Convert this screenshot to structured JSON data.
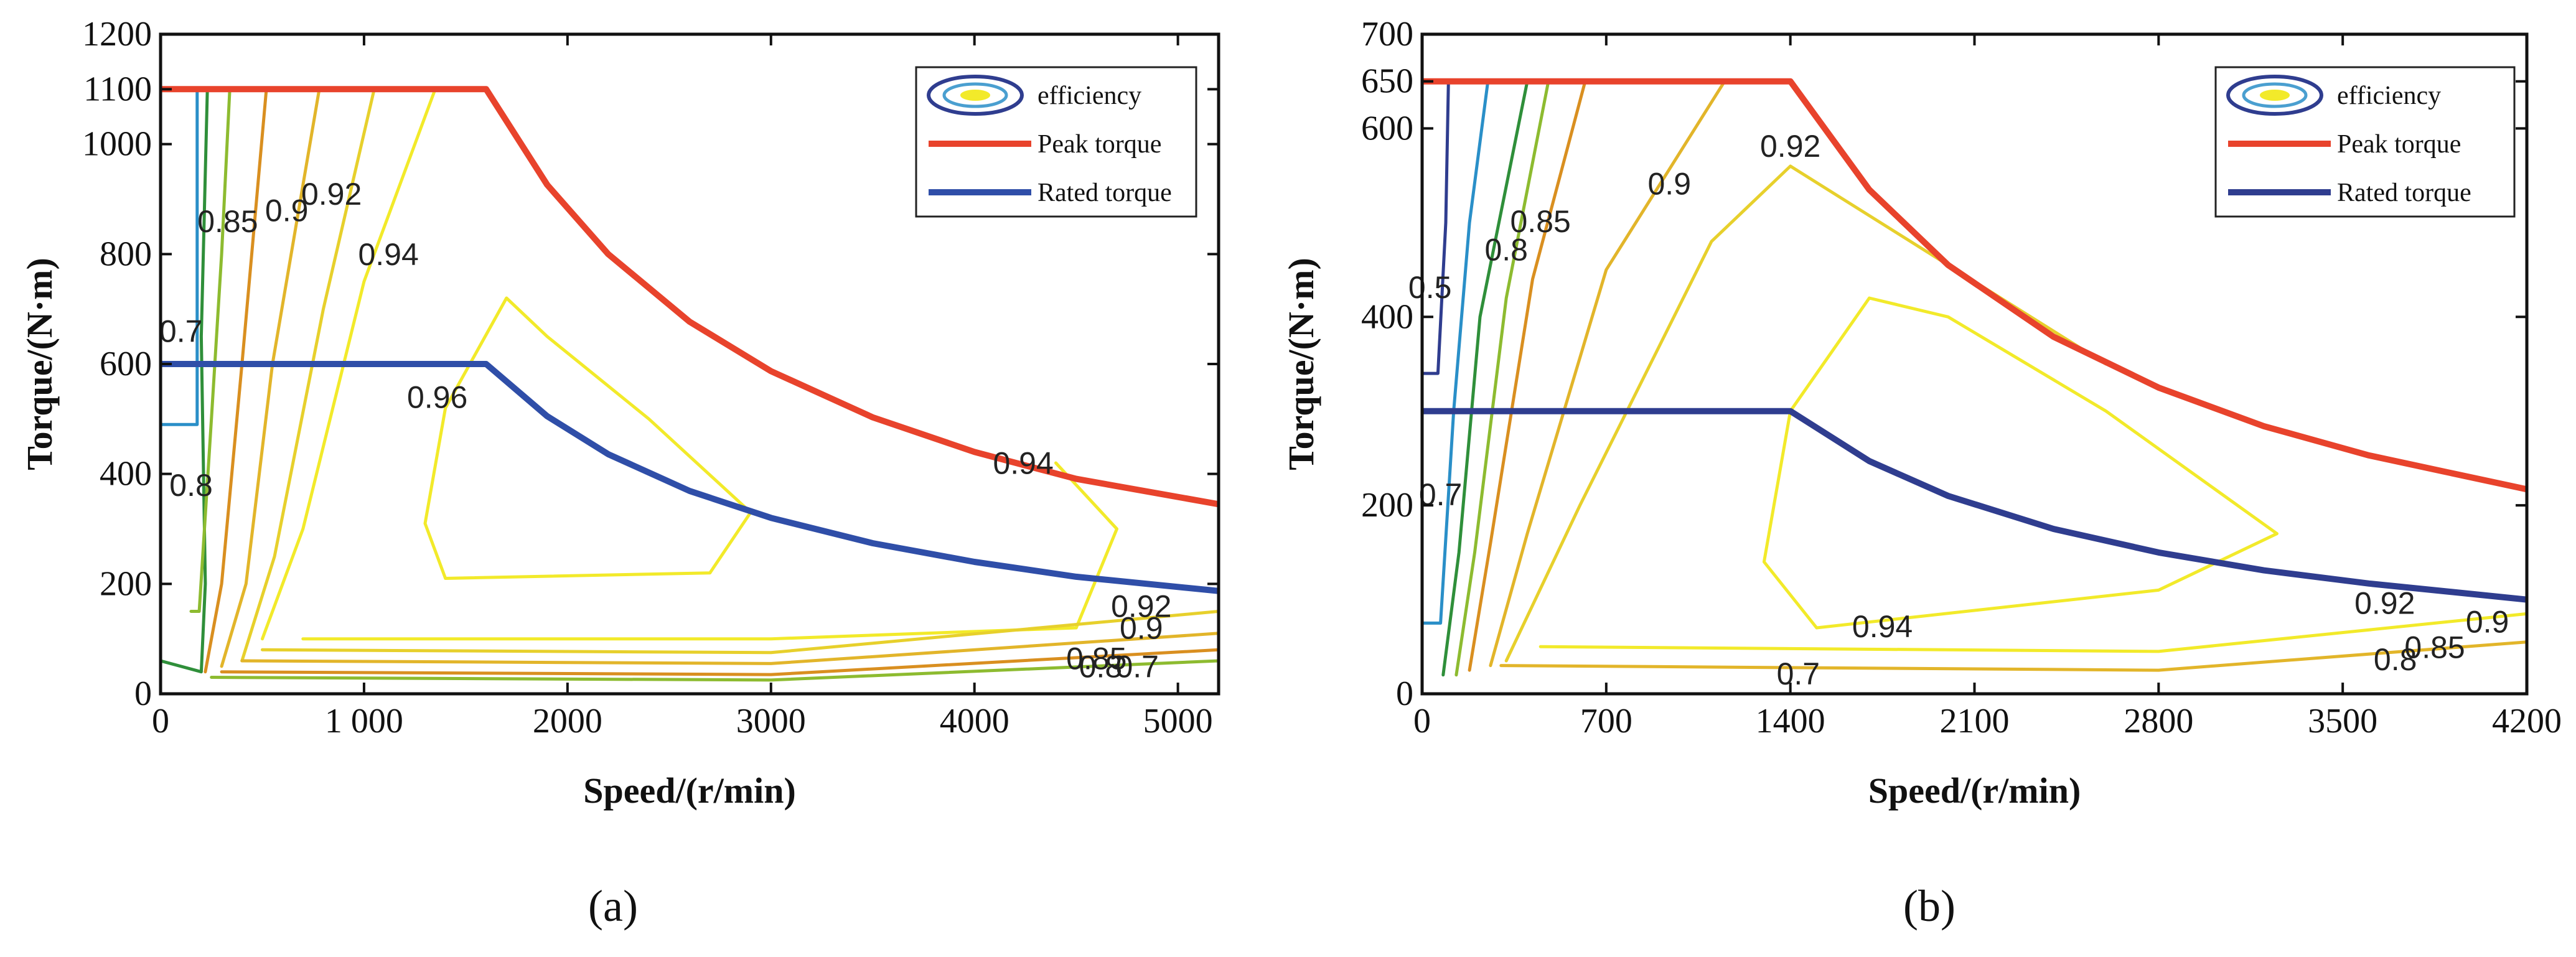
{
  "chart_data": [
    {
      "type": "contour",
      "panel_label": "(a)",
      "xlabel": "Speed/(r/min)",
      "ylabel": "Torque/(N·m)",
      "xlim": [
        0,
        5200
      ],
      "ylim": [
        0,
        1200
      ],
      "x_ticks": [
        0,
        1000,
        2000,
        3000,
        4000,
        5000
      ],
      "x_tick_labels": [
        "0",
        "1 000",
        "2000",
        "3000",
        "4000",
        "5000"
      ],
      "y_ticks": [
        0,
        200,
        400,
        600,
        800,
        1000,
        1100,
        1200
      ],
      "y_tick_labels": [
        "0",
        "200",
        "400",
        "600",
        "800",
        "1000",
        "1100",
        "1200"
      ],
      "legend": {
        "placement": "top-right",
        "entries": [
          {
            "label": "efficiency",
            "kind": "contour",
            "color": "#f2ea2a"
          },
          {
            "label": "Peak torque",
            "kind": "line",
            "color": "#e8432c"
          },
          {
            "label": "Rated torque",
            "kind": "line",
            "color": "#2f4ea8"
          }
        ]
      },
      "series": [
        {
          "name": "Peak torque",
          "color": "#e8432c",
          "points": [
            [
              0,
              1100
            ],
            [
              1600,
              1100
            ],
            [
              1900,
              926
            ],
            [
              2200,
              800
            ],
            [
              2600,
              677
            ],
            [
              3000,
              587
            ],
            [
              3500,
              503
            ],
            [
              4000,
              440
            ],
            [
              4500,
              391
            ],
            [
              5200,
              345
            ]
          ]
        },
        {
          "name": "Rated torque",
          "color": "#2f4ea8",
          "points": [
            [
              0,
              600
            ],
            [
              1600,
              600
            ],
            [
              1900,
              505
            ],
            [
              2200,
              436
            ],
            [
              2600,
              369
            ],
            [
              3000,
              320
            ],
            [
              3500,
              274
            ],
            [
              4000,
              240
            ],
            [
              4500,
              213
            ],
            [
              5200,
              187
            ]
          ]
        }
      ],
      "contours": [
        {
          "level": "0.5",
          "color": "#2a8fc8",
          "points": [
            [
              0,
              490
            ],
            [
              180,
              490
            ],
            [
              180,
              1100
            ]
          ]
        },
        {
          "level": "0.7",
          "color": "#2f8f3a",
          "points": [
            [
              0,
              60
            ],
            [
              200,
              40
            ],
            [
              220,
              200
            ],
            [
              200,
              650
            ],
            [
              230,
              1100
            ]
          ]
        },
        {
          "level": "0.8",
          "color": "#8dbb30",
          "points": [
            [
              150,
              150
            ],
            [
              190,
              150
            ],
            [
              250,
              500
            ],
            [
              300,
              800
            ],
            [
              340,
              1100
            ]
          ]
        },
        {
          "level": "0.85",
          "color": "#d98f20",
          "points": [
            [
              220,
              40
            ],
            [
              300,
              200
            ],
            [
              400,
              600
            ],
            [
              520,
              1100
            ]
          ]
        },
        {
          "level": "0.9",
          "color": "#e2b52a",
          "points": [
            [
              300,
              50
            ],
            [
              420,
              200
            ],
            [
              550,
              600
            ],
            [
              780,
              1100
            ]
          ]
        },
        {
          "level": "0.92",
          "color": "#e7d02c",
          "points": [
            [
              400,
              60
            ],
            [
              560,
              250
            ],
            [
              800,
              700
            ],
            [
              1050,
              1100
            ]
          ]
        },
        {
          "level": "0.94",
          "color": "#f2ea2a",
          "points": [
            [
              500,
              100
            ],
            [
              700,
              300
            ],
            [
              1000,
              750
            ],
            [
              1350,
              1100
            ]
          ]
        },
        {
          "level": "0.96",
          "color": "#f2ea2a",
          "points": [
            [
              1700,
              720
            ],
            [
              1400,
              520
            ],
            [
              1300,
              310
            ],
            [
              1400,
              210
            ],
            [
              2700,
              220
            ],
            [
              2900,
              330
            ],
            [
              2400,
              500
            ],
            [
              1900,
              650
            ],
            [
              1700,
              720
            ]
          ]
        },
        {
          "level": "0.94 loop",
          "color": "#f2ea2a",
          "points": [
            [
              700,
              100
            ],
            [
              3000,
              100
            ],
            [
              4500,
              120
            ],
            [
              4700,
              300
            ],
            [
              4400,
              420
            ]
          ]
        },
        {
          "level": "0.92 low",
          "color": "#e7d02c",
          "points": [
            [
              500,
              80
            ],
            [
              3000,
              75
            ],
            [
              5200,
              150
            ]
          ]
        },
        {
          "level": "0.9 low",
          "color": "#e2b52a",
          "points": [
            [
              400,
              60
            ],
            [
              3000,
              55
            ],
            [
              5200,
              110
            ]
          ]
        },
        {
          "level": "0.85 low",
          "color": "#d98f20",
          "points": [
            [
              300,
              40
            ],
            [
              3000,
              35
            ],
            [
              5200,
              80
            ]
          ]
        },
        {
          "level": "0.8 low",
          "color": "#8dbb30",
          "points": [
            [
              250,
              30
            ],
            [
              3000,
              25
            ],
            [
              5200,
              60
            ]
          ]
        }
      ],
      "annotations": [
        {
          "text": "0.7",
          "x": 100,
          "y": 640
        },
        {
          "text": "0.8",
          "x": 150,
          "y": 360
        },
        {
          "text": "0.85",
          "x": 330,
          "y": 840
        },
        {
          "text": "0.9",
          "x": 620,
          "y": 860
        },
        {
          "text": "0.92",
          "x": 840,
          "y": 890
        },
        {
          "text": "0.94",
          "x": 1120,
          "y": 780
        },
        {
          "text": "0.96",
          "x": 1360,
          "y": 520
        },
        {
          "text": "0.94",
          "x": 4240,
          "y": 400
        },
        {
          "text": "0.92",
          "x": 4820,
          "y": 140
        },
        {
          "text": "0.9",
          "x": 4820,
          "y": 100
        },
        {
          "text": "0.85",
          "x": 4600,
          "y": 45
        },
        {
          "text": "0.8",
          "x": 4620,
          "y": 30
        },
        {
          "text": "0.7",
          "x": 4800,
          "y": 30
        }
      ]
    },
    {
      "type": "contour",
      "panel_label": "(b)",
      "xlabel": "Speed/(r/min)",
      "ylabel": "Torque/(N·m)",
      "xlim": [
        0,
        4200
      ],
      "ylim": [
        0,
        700
      ],
      "x_ticks": [
        0,
        700,
        1400,
        2100,
        2800,
        3500,
        4200
      ],
      "x_tick_labels": [
        "0",
        "700",
        "1400",
        "2100",
        "2800",
        "3500",
        "4200"
      ],
      "y_ticks": [
        0,
        200,
        400,
        600,
        650,
        700
      ],
      "y_tick_labels": [
        "0",
        "200",
        "400",
        "600",
        "650",
        "700"
      ],
      "legend": {
        "placement": "top-right",
        "entries": [
          {
            "label": "efficiency",
            "kind": "contour",
            "color": "#f2ea2a"
          },
          {
            "label": "Peak torque",
            "kind": "line",
            "color": "#e8432c"
          },
          {
            "label": "Rated torque",
            "kind": "line",
            "color": "#2f3d8f"
          }
        ]
      },
      "series": [
        {
          "name": "Peak torque",
          "color": "#e8432c",
          "points": [
            [
              0,
              650
            ],
            [
              1400,
              650
            ],
            [
              1700,
              535
            ],
            [
              2000,
              455
            ],
            [
              2400,
              379
            ],
            [
              2800,
              325
            ],
            [
              3200,
              284
            ],
            [
              3600,
              253
            ],
            [
              4200,
              217
            ]
          ]
        },
        {
          "name": "Rated torque",
          "color": "#2f3d8f",
          "points": [
            [
              0,
              300
            ],
            [
              1400,
              300
            ],
            [
              1700,
              247
            ],
            [
              2000,
              210
            ],
            [
              2400,
              175
            ],
            [
              2800,
              150
            ],
            [
              3200,
              131
            ],
            [
              3600,
              117
            ],
            [
              4200,
              100
            ]
          ]
        }
      ],
      "contours": [
        {
          "level": "0.5",
          "color": "#2f3d8f",
          "points": [
            [
              0,
              340
            ],
            [
              60,
              340
            ],
            [
              90,
              500
            ],
            [
              100,
              650
            ]
          ]
        },
        {
          "level": "0.6",
          "color": "#2a8fc8",
          "points": [
            [
              0,
              75
            ],
            [
              70,
              75
            ],
            [
              120,
              300
            ],
            [
              180,
              500
            ],
            [
              250,
              650
            ]
          ]
        },
        {
          "level": "0.7",
          "color": "#2f8f3a",
          "points": [
            [
              80,
              20
            ],
            [
              140,
              150
            ],
            [
              220,
              400
            ],
            [
              400,
              650
            ]
          ]
        },
        {
          "level": "0.8",
          "color": "#8dbb30",
          "points": [
            [
              130,
              20
            ],
            [
              200,
              150
            ],
            [
              320,
              420
            ],
            [
              480,
              650
            ]
          ]
        },
        {
          "level": "0.85",
          "color": "#d98f20",
          "points": [
            [
              180,
              25
            ],
            [
              260,
              160
            ],
            [
              420,
              440
            ],
            [
              620,
              650
            ]
          ]
        },
        {
          "level": "0.9",
          "color": "#e2b52a",
          "points": [
            [
              260,
              30
            ],
            [
              400,
              170
            ],
            [
              700,
              450
            ],
            [
              1150,
              650
            ]
          ]
        },
        {
          "level": "0.92",
          "color": "#e7d02c",
          "points": [
            [
              320,
              35
            ],
            [
              600,
              200
            ],
            [
              1100,
              480
            ],
            [
              1400,
              560
            ],
            [
              2600,
              350
            ]
          ]
        },
        {
          "level": "0.94",
          "color": "#f2ea2a",
          "points": [
            [
              1700,
              420
            ],
            [
              1400,
              300
            ],
            [
              1300,
              140
            ],
            [
              1500,
              70
            ],
            [
              2800,
              110
            ],
            [
              3250,
              170
            ],
            [
              2600,
              300
            ],
            [
              2000,
              400
            ],
            [
              1700,
              420
            ]
          ]
        },
        {
          "level": "0.94 low",
          "color": "#f2ea2a",
          "points": [
            [
              450,
              50
            ],
            [
              2800,
              45
            ],
            [
              4200,
              85
            ]
          ]
        },
        {
          "level": "0.9 low",
          "color": "#e2b52a",
          "points": [
            [
              300,
              30
            ],
            [
              2800,
              25
            ],
            [
              4200,
              55
            ]
          ]
        }
      ],
      "annotations": [
        {
          "text": "0.5",
          "x": 30,
          "y": 420
        },
        {
          "text": "0.7",
          "x": 70,
          "y": 200
        },
        {
          "text": "0.8",
          "x": 320,
          "y": 460
        },
        {
          "text": "0.85",
          "x": 450,
          "y": 490
        },
        {
          "text": "0.9",
          "x": 940,
          "y": 530
        },
        {
          "text": "0.92",
          "x": 1400,
          "y": 570
        },
        {
          "text": "0.94",
          "x": 1750,
          "y": 60
        },
        {
          "text": "0.7",
          "x": 1430,
          "y": 10
        },
        {
          "text": "0.92",
          "x": 3660,
          "y": 85
        },
        {
          "text": "0.9",
          "x": 4050,
          "y": 65
        },
        {
          "text": "0.85",
          "x": 3850,
          "y": 38
        },
        {
          "text": "0.8",
          "x": 3700,
          "y": 25
        }
      ]
    }
  ]
}
